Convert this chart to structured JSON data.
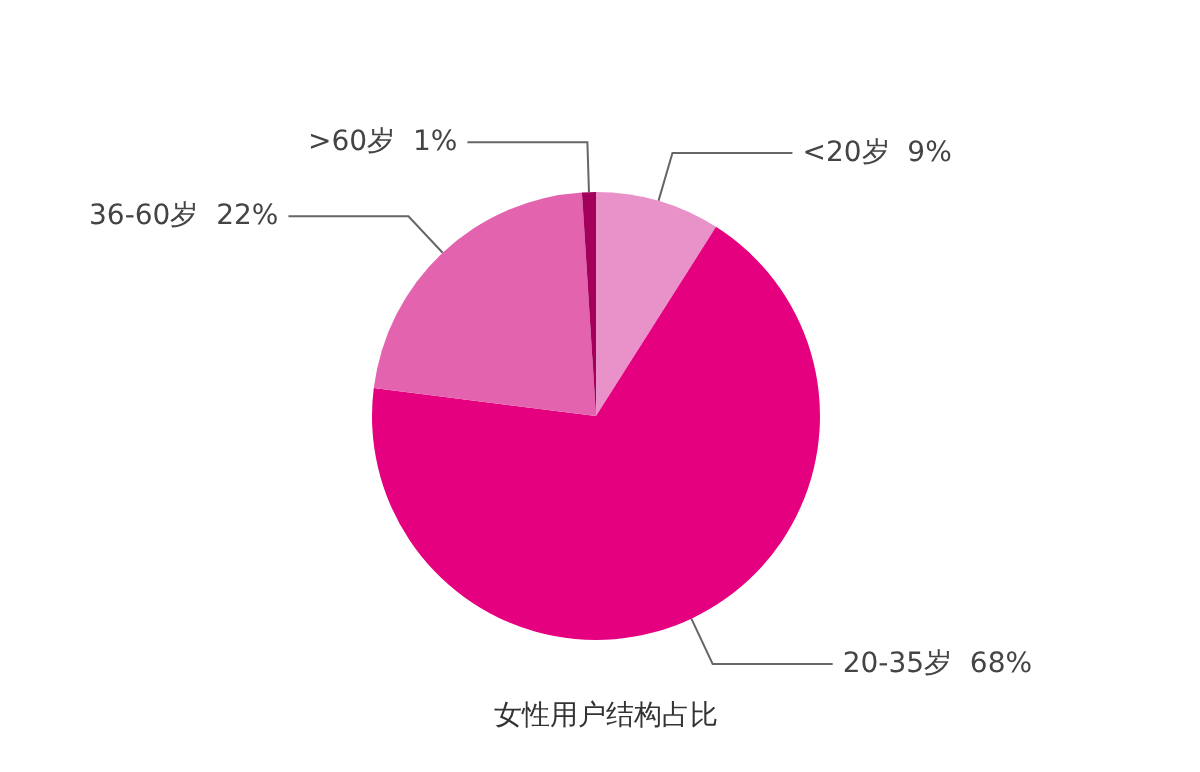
{
  "chart_data": {
    "type": "pie",
    "title": "女性用户结构占比",
    "categories": [
      "<20岁",
      "20-35岁",
      "36-60岁",
      ">60岁"
    ],
    "values": [
      9,
      68,
      22,
      1
    ],
    "value_labels": [
      "9%",
      "68%",
      "22%",
      "1%"
    ],
    "colors": [
      "#e992c9",
      "#e4007f",
      "#e463ae",
      "#a3005c"
    ],
    "legend": false
  }
}
